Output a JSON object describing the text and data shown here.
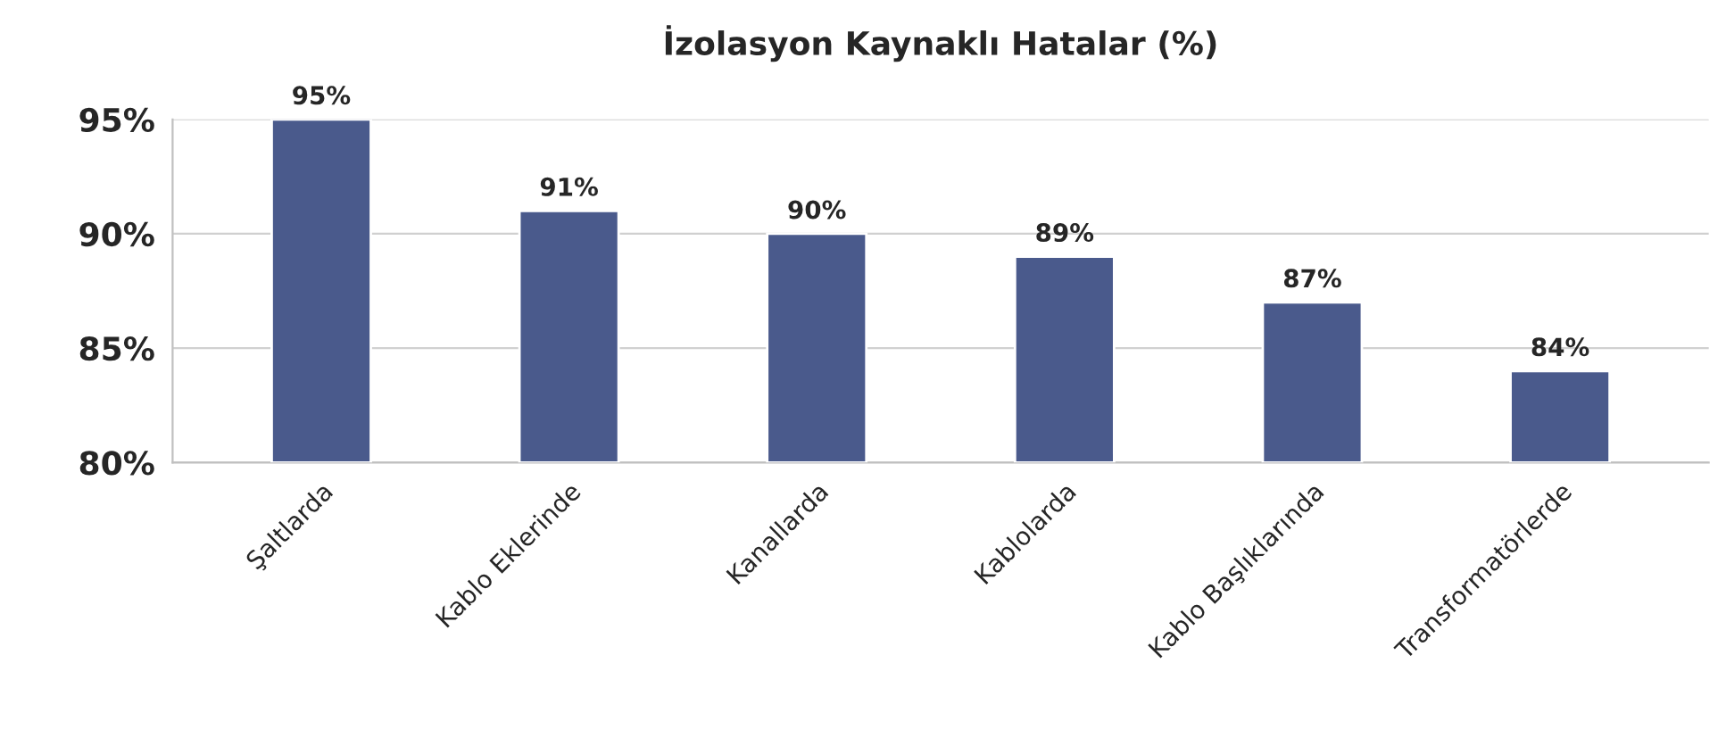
{
  "chart_data": {
    "type": "bar",
    "title": "İzolasyon Kaynaklı Hatalar (%)",
    "categories": [
      "Şaltlarda",
      "Kablo Eklerinde",
      "Kanallarda",
      "Kablolarda",
      "Kablo Başlıklarında",
      "Transformatörlerde"
    ],
    "values": [
      95,
      91,
      90,
      89,
      87,
      84
    ],
    "value_labels": [
      "95%",
      "91%",
      "90%",
      "89%",
      "87%",
      "84%"
    ],
    "color": "#4a5a8c",
    "ylim": [
      80,
      95
    ],
    "yticks": [
      {
        "value": 80,
        "label": "80%"
      },
      {
        "value": 85,
        "label": "85%"
      },
      {
        "value": 90,
        "label": "90%"
      },
      {
        "value": 95,
        "label": "95%"
      }
    ],
    "grid": "y",
    "legend": false
  }
}
